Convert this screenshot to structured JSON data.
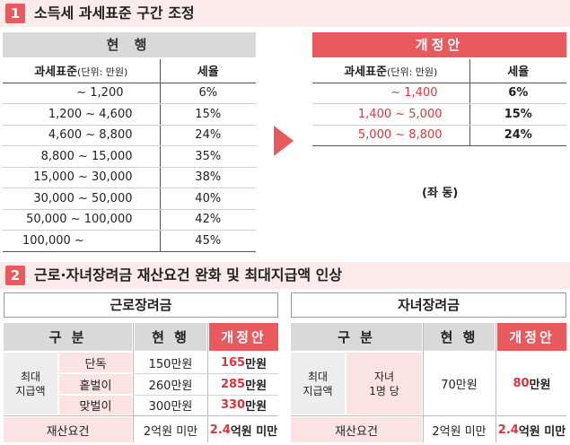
{
  "section1": {
    "number": "1",
    "title": "소득세 과세표준 구간 조정",
    "current_header": "현 행",
    "revised_header": "개정안",
    "col_base": "과세표준",
    "col_base_unit": "(단위: 만원)",
    "col_rate": "세율",
    "current_rows": [
      {
        "range": "~ 1,200",
        "rate": "6%"
      },
      {
        "range": "1,200 ~ 4,600",
        "rate": "15%"
      },
      {
        "range": "4,600 ~ 8,800",
        "rate": "24%"
      },
      {
        "range": "8,800 ~ 15,000",
        "rate": "35%"
      },
      {
        "range": "15,000 ~ 30,000",
        "rate": "38%"
      },
      {
        "range": "30,000 ~ 50,000",
        "rate": "40%"
      },
      {
        "range": "50,000 ~ 100,000",
        "rate": "42%"
      },
      {
        "range": "100,000 ~",
        "rate": "45%"
      }
    ],
    "revised_rows": [
      {
        "range": "~ 1,400",
        "rate": "6%"
      },
      {
        "range": "1,400 ~ 5,000",
        "rate": "15%"
      },
      {
        "range": "5,000 ~ 8,800",
        "rate": "24%"
      }
    ],
    "same_note": "(좌 동)"
  },
  "section2": {
    "number": "2",
    "title": "근로·자녀장려금 재산요건 완화 및 최대지급액 인상",
    "eitc": {
      "title": "근로장려금",
      "col_category": "구 분",
      "col_current": "현 행",
      "col_revised": "개정안",
      "max_label": "최대\n지급액",
      "rows": [
        {
          "type": "단독",
          "current": "150만원",
          "revised_hl": "165",
          "revised_unit": "만원"
        },
        {
          "type": "홑벌이",
          "current": "260만원",
          "revised_hl": "285",
          "revised_unit": "만원"
        },
        {
          "type": "맞벌이",
          "current": "300만원",
          "revised_hl": "330",
          "revised_unit": "만원"
        }
      ],
      "asset_label": "재산요건",
      "asset_current": "2억원 미만",
      "asset_revised_hl": "2.4",
      "asset_revised_unit": "억원 미만"
    },
    "ctc": {
      "title": "자녀장려금",
      "col_category": "구 분",
      "col_current": "현 행",
      "col_revised": "개정안",
      "max_label": "최대\n지급액",
      "type": "자녀\n1명 당",
      "current": "70만원",
      "revised_hl": "80",
      "revised_unit": "만원",
      "asset_label": "재산요건",
      "asset_current": "2억원 미만",
      "asset_revised_hl": "2.4",
      "asset_revised_unit": "억원 미만"
    }
  },
  "colors": {
    "accent_red": "#e85a5e",
    "text_red": "#d9363e",
    "header_gray": "#d9d9d9",
    "pink": "#fbe3e4",
    "section_bar": "#fdeaea"
  }
}
